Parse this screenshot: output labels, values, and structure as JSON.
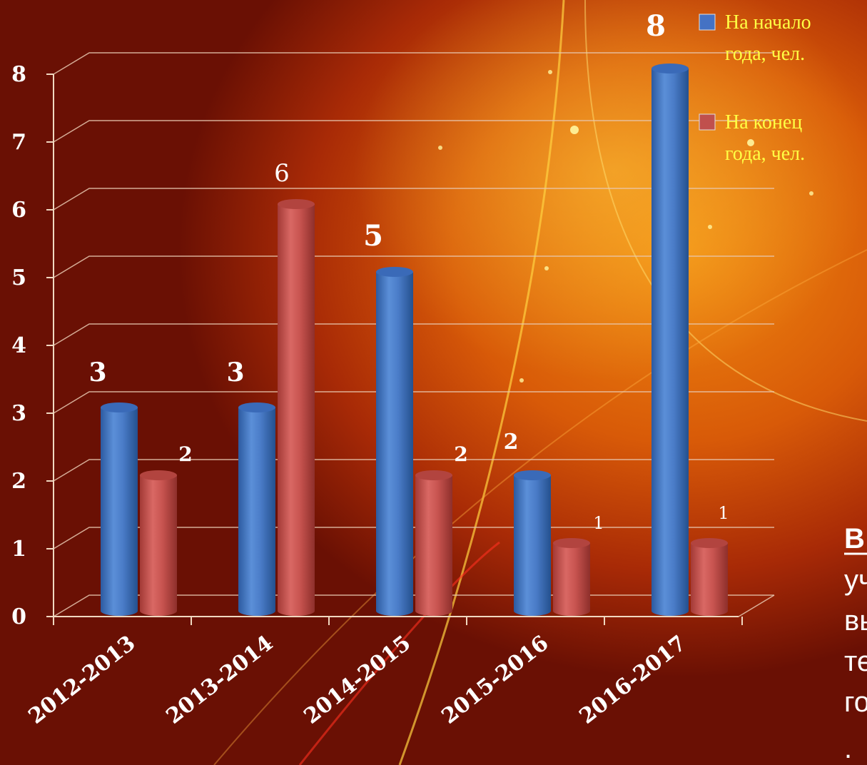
{
  "chart_data": {
    "type": "bar",
    "categories": [
      "2012-2013",
      "2013-2014",
      "2014-2015",
      "2015-2016",
      "2016-2017"
    ],
    "series": [
      {
        "name": "На начало года, чел.",
        "color": "#4472c4",
        "values": [
          3,
          3,
          5,
          2,
          8
        ]
      },
      {
        "name": "На конец года, чел.",
        "color": "#c0504d",
        "values": [
          2,
          6,
          2,
          1,
          1
        ]
      }
    ],
    "yticks": [
      "0",
      "1",
      "2",
      "3",
      "4",
      "5",
      "6",
      "7",
      "8"
    ],
    "ylim": [
      0,
      8
    ],
    "grid": true,
    "legend": "top-right",
    "title": "",
    "xlabel": "",
    "ylabel": ""
  },
  "legend": {
    "items": [
      {
        "lines": [
          "На начало",
          "года, чел."
        ],
        "color": "#4472c4"
      },
      {
        "lines": [
          "На конец",
          "года, чел."
        ],
        "color": "#c0504d"
      }
    ]
  },
  "side_text": {
    "lines": [
      "В",
      "уч",
      "вы",
      "те",
      "го",
      "."
    ]
  }
}
